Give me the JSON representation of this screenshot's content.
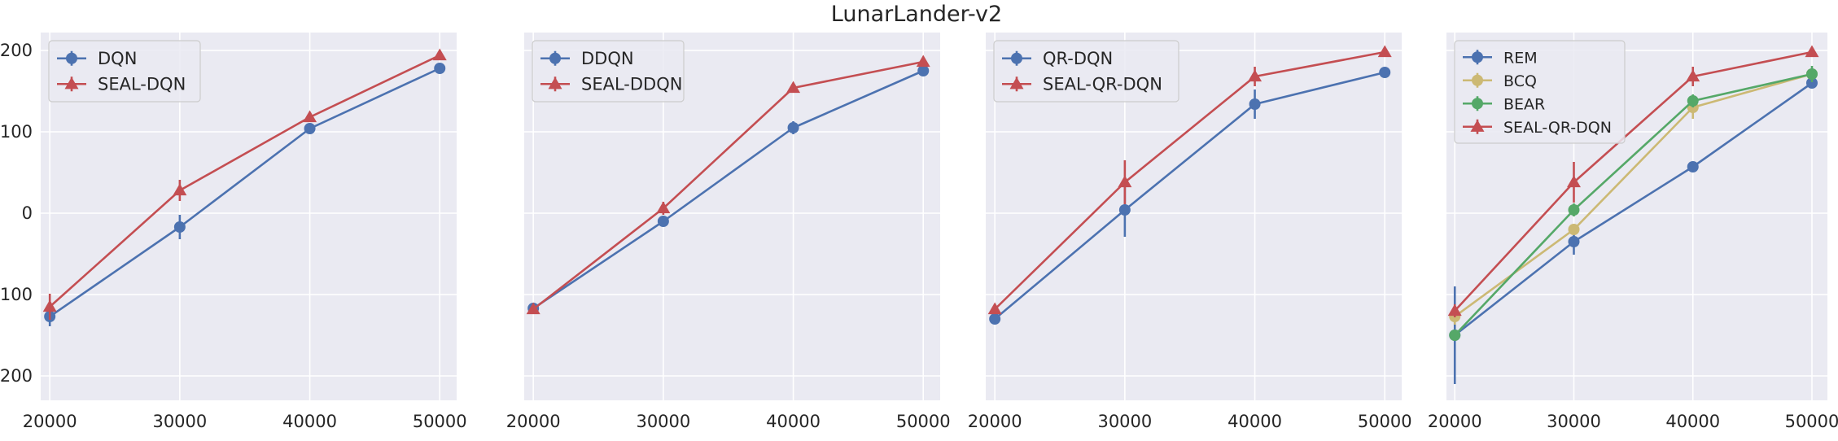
{
  "figure": {
    "title": "LunarLander-v2"
  },
  "chart_data": [
    {
      "type": "line",
      "x": [
        20000,
        30000,
        40000,
        50000
      ],
      "xlim": [
        19300,
        51300
      ],
      "ylim": [
        -230,
        222
      ],
      "x_ticks": [
        20000,
        30000,
        40000,
        50000
      ],
      "y_ticks": [
        -200,
        -100,
        0,
        100,
        200
      ],
      "show_y_tick_labels": true,
      "grid": true,
      "legend_position": "top-left",
      "series": [
        {
          "name": "DQN",
          "color": "#4c72b0",
          "marker": "circle",
          "values": [
            -127,
            -17,
            104,
            178
          ],
          "errors": [
            12,
            15,
            4,
            4
          ]
        },
        {
          "name": "SEAL-DQN",
          "color": "#c44e52",
          "marker": "triangle",
          "values": [
            -115,
            28,
            118,
            194
          ],
          "errors": [
            16,
            13,
            5,
            5
          ]
        }
      ]
    },
    {
      "type": "line",
      "x": [
        20000,
        30000,
        40000,
        50000
      ],
      "xlim": [
        19300,
        51300
      ],
      "ylim": [
        -230,
        222
      ],
      "x_ticks": [
        20000,
        30000,
        40000,
        50000
      ],
      "y_ticks": [
        -200,
        -100,
        0,
        100,
        200
      ],
      "show_y_tick_labels": false,
      "grid": true,
      "legend_position": "top-left",
      "series": [
        {
          "name": "DDQN",
          "color": "#4c72b0",
          "marker": "circle",
          "values": [
            -117,
            -10,
            105,
            175
          ],
          "errors": [
            5,
            5,
            8,
            6
          ]
        },
        {
          "name": "SEAL-DDQN",
          "color": "#c44e52",
          "marker": "triangle",
          "values": [
            -118,
            6,
            154,
            186
          ],
          "errors": [
            5,
            8,
            4,
            4
          ]
        }
      ]
    },
    {
      "type": "line",
      "x": [
        20000,
        30000,
        40000,
        50000
      ],
      "xlim": [
        19300,
        51300
      ],
      "ylim": [
        -230,
        222
      ],
      "x_ticks": [
        20000,
        30000,
        40000,
        50000
      ],
      "y_ticks": [
        -200,
        -100,
        0,
        100,
        200
      ],
      "show_y_tick_labels": false,
      "grid": true,
      "legend_position": "top-left",
      "series": [
        {
          "name": "QR-DQN",
          "color": "#4c72b0",
          "marker": "circle",
          "values": [
            -130,
            4,
            134,
            173
          ],
          "errors": [
            5,
            33,
            18,
            4
          ]
        },
        {
          "name": "SEAL-QR-DQN",
          "color": "#c44e52",
          "marker": "triangle",
          "values": [
            -118,
            38,
            168,
            198
          ],
          "errors": [
            4,
            27,
            12,
            4
          ]
        }
      ]
    },
    {
      "type": "line",
      "x": [
        20000,
        30000,
        40000,
        50000
      ],
      "xlim": [
        19300,
        51300
      ],
      "ylim": [
        -230,
        222
      ],
      "x_ticks": [
        20000,
        30000,
        40000,
        50000
      ],
      "y_ticks": [
        -200,
        -100,
        0,
        100,
        200
      ],
      "show_y_tick_labels": false,
      "grid": true,
      "legend_position": "top-left",
      "series": [
        {
          "name": "REM",
          "color": "#4c72b0",
          "marker": "circle",
          "values": [
            -150,
            -35,
            57,
            160
          ],
          "errors": [
            60,
            16,
            4,
            5
          ]
        },
        {
          "name": "BCQ",
          "color": "#ccb974",
          "marker": "circle",
          "values": [
            -127,
            -20,
            130,
            171
          ],
          "errors": [
            10,
            6,
            14,
            5
          ]
        },
        {
          "name": "BEAR",
          "color": "#55a868",
          "marker": "circle",
          "values": [
            -150,
            4,
            138,
            171
          ],
          "errors": [
            6,
            8,
            8,
            10
          ]
        },
        {
          "name": "SEAL-QR-DQN",
          "color": "#c44e52",
          "marker": "triangle",
          "values": [
            -120,
            38,
            168,
            198
          ],
          "errors": [
            8,
            25,
            12,
            4
          ]
        }
      ]
    }
  ]
}
